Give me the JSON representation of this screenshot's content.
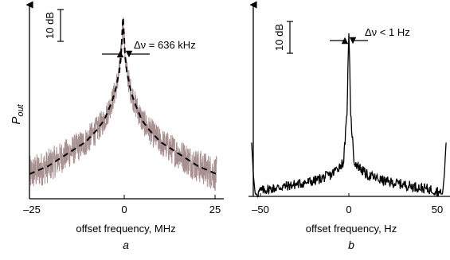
{
  "chart_data": [
    {
      "type": "line",
      "panel_label": "a",
      "ylabel": "P",
      "ylabel_sub": "out",
      "xlabel": "offset frequency, MHz",
      "xlim": [
        -25,
        25
      ],
      "xticks": [
        "–25",
        "0",
        "25"
      ],
      "scale_bar": "10 dB",
      "annotation": "Δν = 636 kHz",
      "linewidth_khz": 636,
      "grid": false,
      "series": [
        {
          "role": "measured spectrum (noisy)",
          "color": "#a89090"
        },
        {
          "role": "Lorentzian fit (dashed)",
          "color": "#000000",
          "x": [
            -25,
            -20,
            -15,
            -10,
            -7,
            -5,
            -3,
            -2,
            -1,
            -0.5,
            0,
            0.5,
            1,
            2,
            3,
            5,
            7,
            10,
            15,
            20,
            25
          ],
          "y_rel_db": [
            -39,
            -37,
            -34,
            -31,
            -28,
            -25.5,
            -21,
            -18,
            -13.5,
            -9,
            0,
            -9,
            -13.5,
            -18,
            -21,
            -25.5,
            -28,
            -31,
            -34,
            -37,
            -39
          ]
        }
      ]
    },
    {
      "type": "line",
      "panel_label": "b",
      "ylabel": "",
      "xlabel": "offset frequency, Hz",
      "xlim": [
        -55,
        55
      ],
      "xticks": [
        "–50",
        "0",
        "50"
      ],
      "scale_bar": "10 dB",
      "annotation": "Δν < 1 Hz",
      "grid": false,
      "series": [
        {
          "role": "spectrum",
          "color": "#000000",
          "x": [
            -55,
            -54,
            -53,
            -52,
            -50,
            -40,
            -30,
            -20,
            -10,
            -3,
            -1,
            -0.5,
            0,
            0.5,
            1,
            3,
            10,
            20,
            30,
            40,
            50,
            52,
            53,
            54,
            55
          ],
          "y_rel_db": [
            -34,
            -44,
            -50,
            -50,
            -49,
            -48,
            -47,
            -46,
            -44,
            -40,
            -25,
            -10,
            0,
            -10,
            -25,
            -40,
            -44,
            -46,
            -47,
            -48,
            -49,
            -50,
            -50,
            -44,
            -34
          ]
        }
      ]
    }
  ]
}
